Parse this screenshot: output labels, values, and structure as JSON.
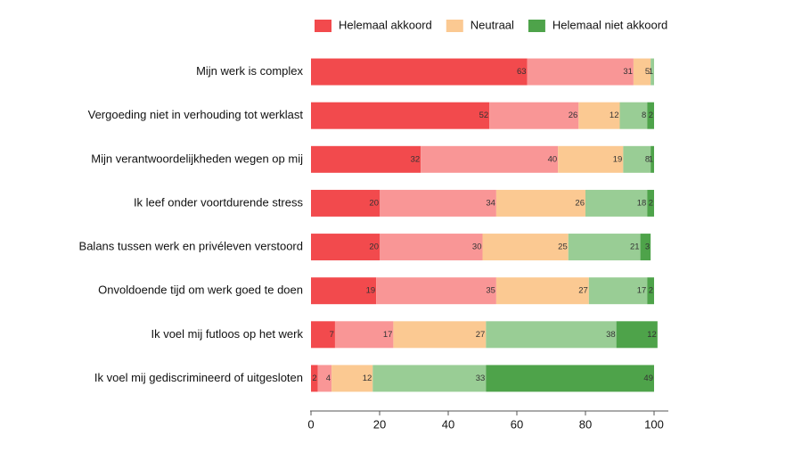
{
  "chart_data": {
    "type": "stacked-bar-horizontal",
    "categories": [
      "Mijn werk is complex",
      "Vergoeding niet in verhouding tot werklast",
      "Mijn verantwoordelijkheden wegen op mij",
      "Ik leef onder voortdurende stress",
      "Balans tussen werk en privéleven verstoord",
      "Onvoldoende tijd om werk goed te doen",
      "Ik voel mij futloos op het werk",
      "Ik voel mij gediscrimineerd of uitgesloten"
    ],
    "series": [
      {
        "name": "Helemaal akkoord",
        "color": "#f24a4d",
        "values": [
          63,
          52,
          32,
          20,
          20,
          19,
          7,
          2
        ]
      },
      {
        "color": "#f99696",
        "values": [
          31,
          26,
          40,
          34,
          30,
          35,
          17,
          4
        ]
      },
      {
        "name": "Neutraal",
        "color": "#fbc992",
        "values": [
          5,
          12,
          19,
          26,
          25,
          27,
          27,
          12
        ]
      },
      {
        "color": "#99cd95",
        "values": [
          1,
          8,
          8,
          18,
          21,
          17,
          38,
          33
        ]
      },
      {
        "name": "Helemaal niet akkoord",
        "color": "#4ea34a",
        "values": [
          null,
          2,
          1,
          2,
          3,
          2,
          12,
          49
        ]
      }
    ],
    "xlim": [
      0,
      100
    ],
    "xticks": [
      0,
      20,
      40,
      60,
      80,
      100
    ],
    "legend": "top"
  }
}
